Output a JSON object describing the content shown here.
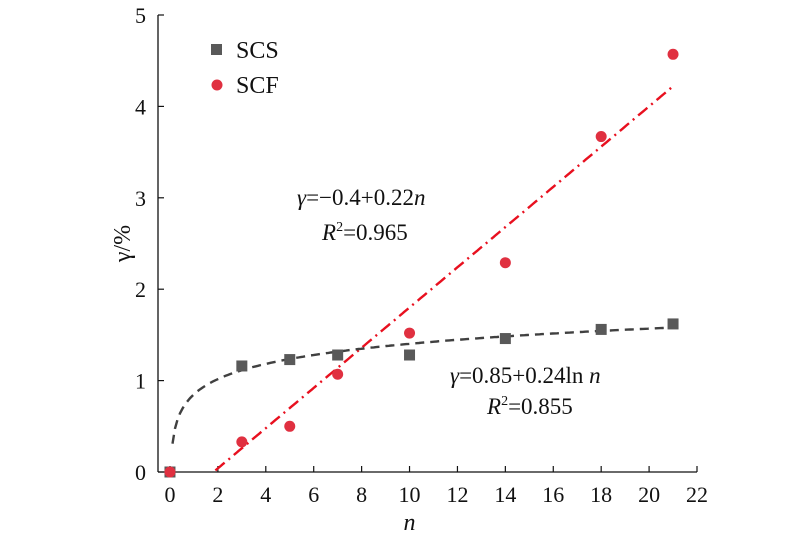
{
  "chart_data": {
    "type": "scatter",
    "xlabel": "n",
    "ylabel": "γ/%",
    "xlim": [
      -0.5,
      22
    ],
    "ylim": [
      0,
      5
    ],
    "xticks": [
      "0",
      "2",
      "4",
      "6",
      "8",
      "10",
      "12",
      "14",
      "16",
      "18",
      "20",
      "22"
    ],
    "yticks": [
      "0",
      "1",
      "2",
      "3",
      "4",
      "5"
    ],
    "legend_position": "top-left",
    "grid": false,
    "series": [
      {
        "name": "SCS",
        "marker": "square",
        "color": "#595959",
        "x": [
          0,
          3,
          5,
          7,
          10,
          14,
          18,
          21
        ],
        "y": [
          0,
          1.16,
          1.23,
          1.28,
          1.28,
          1.46,
          1.56,
          1.62
        ]
      },
      {
        "name": "SCF",
        "marker": "circle",
        "color": "#e03040",
        "x": [
          0,
          3,
          5,
          7,
          10,
          14,
          18,
          21
        ],
        "y": [
          0,
          0.33,
          0.5,
          1.07,
          1.52,
          2.29,
          3.67,
          4.57
        ]
      }
    ],
    "fits": [
      {
        "for": "SCF",
        "kind": "linear",
        "a": -0.4,
        "b": 0.22,
        "x_range": [
          1.8,
          21
        ],
        "style": "dash-dot",
        "color": "#e8101f",
        "equation": {
          "prefix": "γ",
          "body": "=−0.4+0.22",
          "var": "n"
        },
        "r2": {
          "label": "R",
          "sup": "2",
          "value": "=0.965"
        }
      },
      {
        "for": "SCS",
        "kind": "log",
        "a": 0.85,
        "b": 0.24,
        "x_range": [
          0,
          21
        ],
        "style": "dashed",
        "color": "#404040",
        "equation": {
          "prefix": "γ",
          "body": "=0.85+0.24ln ",
          "var": "n"
        },
        "r2": {
          "label": "R",
          "sup": "2",
          "value": "=0.855"
        }
      }
    ]
  }
}
